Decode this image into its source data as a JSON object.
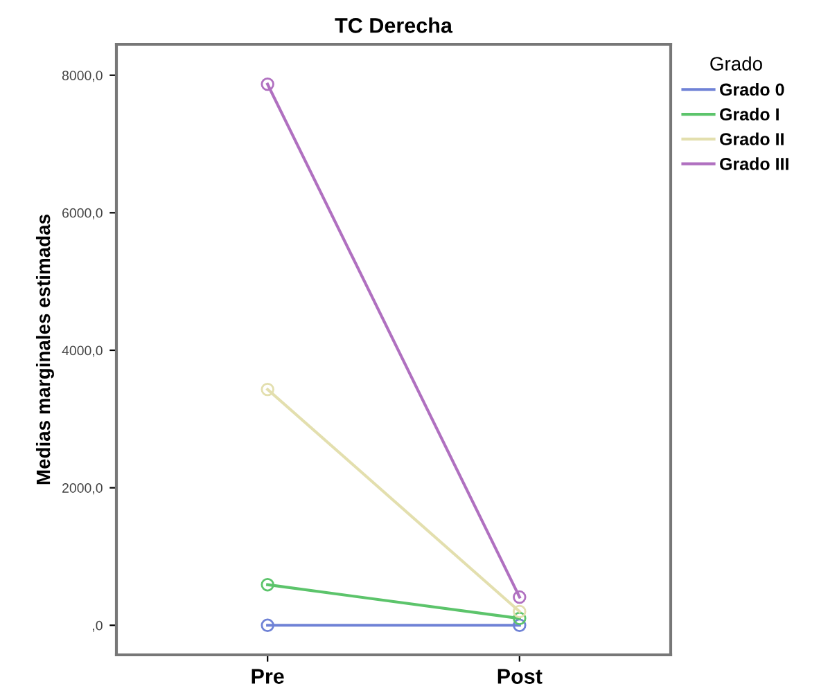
{
  "chart_data": {
    "type": "line",
    "title": "TC Derecha",
    "ylabel": "Medias marginales estimadas",
    "legend_title": "Grado",
    "categories": [
      "Pre",
      "Post"
    ],
    "series": [
      {
        "name": "Grado 0",
        "color": "#6f82d6",
        "values": [
          0,
          0
        ]
      },
      {
        "name": "Grado I",
        "color": "#5cc46b",
        "values": [
          590,
          100
        ]
      },
      {
        "name": "Grado II",
        "color": "#e3dfae",
        "values": [
          3430,
          200
        ]
      },
      {
        "name": "Grado III",
        "color": "#b070c0",
        "values": [
          7870,
          410
        ]
      }
    ],
    "ylim": [
      -430,
      8450
    ],
    "yticks": [
      {
        "value": 0,
        "label": ",0"
      },
      {
        "value": 2000,
        "label": "2000,0"
      },
      {
        "value": 4000,
        "label": "4000,0"
      },
      {
        "value": 6000,
        "label": "6000,0"
      },
      {
        "value": 8000,
        "label": "8000,0"
      }
    ],
    "marker": "circle",
    "line_style": "solid",
    "legend": "top right",
    "grid": false
  }
}
